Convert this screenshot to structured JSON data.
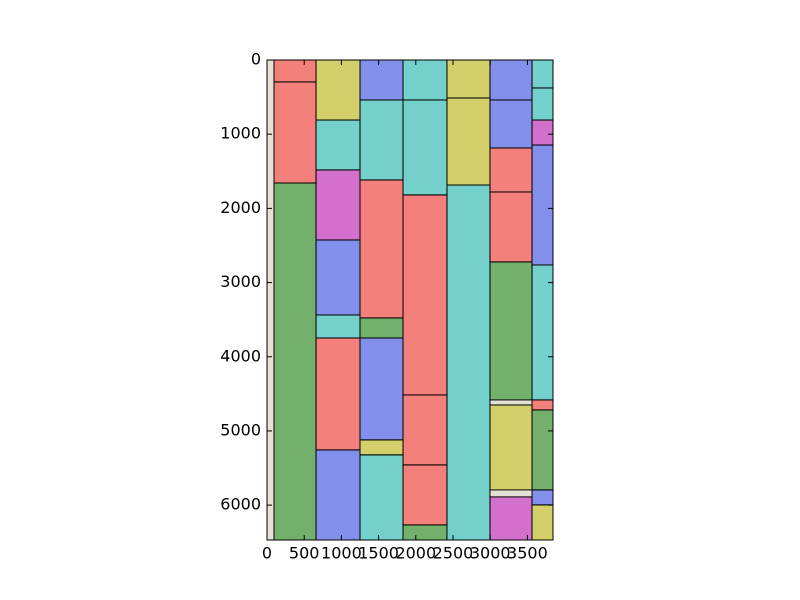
{
  "chart_data": {
    "type": "image-regions",
    "xlim": [
      0,
      3844
    ],
    "ylim": [
      6470,
      0
    ],
    "xticks": [
      0,
      500,
      1000,
      1500,
      2000,
      2500,
      3000,
      3500
    ],
    "yticks": [
      0,
      1000,
      2000,
      3000,
      4000,
      5000,
      6000
    ],
    "boxes": [
      {
        "x": [
          94,
          659
        ],
        "y": [
          0,
          296
        ],
        "color": "#ff2020"
      },
      {
        "x": [
          94,
          659
        ],
        "y": [
          296,
          1658
        ],
        "color": "#ff2020"
      },
      {
        "x": [
          94,
          659
        ],
        "y": [
          1658,
          6470
        ],
        "color": "#008000"
      },
      {
        "x": [
          659,
          1250
        ],
        "y": [
          0,
          809
        ],
        "color": "#bfbf00"
      },
      {
        "x": [
          659,
          1250
        ],
        "y": [
          809,
          1482
        ],
        "color": "#00bfbf"
      },
      {
        "x": [
          659,
          1250
        ],
        "y": [
          1482,
          2426
        ],
        "color": "#bf00bf"
      },
      {
        "x": [
          659,
          1250
        ],
        "y": [
          2426,
          3437
        ],
        "color": "#2040ff"
      },
      {
        "x": [
          659,
          1250
        ],
        "y": [
          3437,
          3747
        ],
        "color": "#00bfbf"
      },
      {
        "x": [
          659,
          1250
        ],
        "y": [
          3747,
          5256
        ],
        "color": "#ff2020"
      },
      {
        "x": [
          659,
          1250
        ],
        "y": [
          5256,
          6470
        ],
        "color": "#2040ff"
      },
      {
        "x": [
          1250,
          1828
        ],
        "y": [
          0,
          539
        ],
        "color": "#2040ff"
      },
      {
        "x": [
          1250,
          1828
        ],
        "y": [
          539,
          1617
        ],
        "color": "#00bfbf"
      },
      {
        "x": [
          1250,
          1828
        ],
        "y": [
          1617,
          3477
        ],
        "color": "#ff2020"
      },
      {
        "x": [
          1250,
          1828
        ],
        "y": [
          3477,
          3747
        ],
        "color": "#008000"
      },
      {
        "x": [
          1250,
          1828
        ],
        "y": [
          3747,
          5121
        ],
        "color": "#2040ff"
      },
      {
        "x": [
          1250,
          1828
        ],
        "y": [
          5121,
          5323
        ],
        "color": "#bfbf00"
      },
      {
        "x": [
          1250,
          1828
        ],
        "y": [
          5323,
          6470
        ],
        "color": "#00bfbf"
      },
      {
        "x": [
          1828,
          2419
        ],
        "y": [
          0,
          539
        ],
        "color": "#00bfbf"
      },
      {
        "x": [
          1828,
          2419
        ],
        "y": [
          539,
          1819
        ],
        "color": "#00bfbf"
      },
      {
        "x": [
          1828,
          2419
        ],
        "y": [
          1819,
          4515
        ],
        "color": "#ff2020"
      },
      {
        "x": [
          1828,
          2419
        ],
        "y": [
          4515,
          5458
        ],
        "color": "#ff2020"
      },
      {
        "x": [
          1828,
          2419
        ],
        "y": [
          5458,
          6267
        ],
        "color": "#ff2020"
      },
      {
        "x": [
          1828,
          2419
        ],
        "y": [
          6267,
          6470
        ],
        "color": "#008000"
      },
      {
        "x": [
          2419,
          2997
        ],
        "y": [
          0,
          512
        ],
        "color": "#bfbf00"
      },
      {
        "x": [
          2419,
          2997
        ],
        "y": [
          512,
          1685
        ],
        "color": "#bfbf00"
      },
      {
        "x": [
          2419,
          2997
        ],
        "y": [
          1685,
          6470
        ],
        "color": "#00bfbf"
      },
      {
        "x": [
          2997,
          3562
        ],
        "y": [
          0,
          539
        ],
        "color": "#2040ff"
      },
      {
        "x": [
          2997,
          3562
        ],
        "y": [
          539,
          1186
        ],
        "color": "#2040ff"
      },
      {
        "x": [
          2997,
          3562
        ],
        "y": [
          1186,
          1779
        ],
        "color": "#ff2020"
      },
      {
        "x": [
          2997,
          3562
        ],
        "y": [
          1779,
          2722
        ],
        "color": "#ff2020"
      },
      {
        "x": [
          2997,
          3562
        ],
        "y": [
          2722,
          4582
        ],
        "color": "#008000"
      },
      {
        "x": [
          2997,
          3562
        ],
        "y": [
          4650,
          5795
        ],
        "color": "#bfbf00"
      },
      {
        "x": [
          2997,
          3562
        ],
        "y": [
          5889,
          6470
        ],
        "color": "#bf00bf"
      },
      {
        "x": [
          3562,
          3844
        ],
        "y": [
          0,
          377
        ],
        "color": "#00bfbf"
      },
      {
        "x": [
          3562,
          3844
        ],
        "y": [
          377,
          809
        ],
        "color": "#00bfbf"
      },
      {
        "x": [
          3562,
          3844
        ],
        "y": [
          809,
          1146
        ],
        "color": "#bf00bf"
      },
      {
        "x": [
          3562,
          3844
        ],
        "y": [
          1146,
          2763
        ],
        "color": "#2040ff"
      },
      {
        "x": [
          3562,
          3844
        ],
        "y": [
          2763,
          4582
        ],
        "color": "#00bfbf"
      },
      {
        "x": [
          3562,
          3844
        ],
        "y": [
          4582,
          4717
        ],
        "color": "#ff2020"
      },
      {
        "x": [
          3562,
          3844
        ],
        "y": [
          4717,
          5795
        ],
        "color": "#008000"
      },
      {
        "x": [
          3562,
          3844
        ],
        "y": [
          5795,
          5997
        ],
        "color": "#2040ff"
      },
      {
        "x": [
          3562,
          3844
        ],
        "y": [
          5997,
          6470
        ],
        "color": "#bfbf00"
      }
    ]
  }
}
